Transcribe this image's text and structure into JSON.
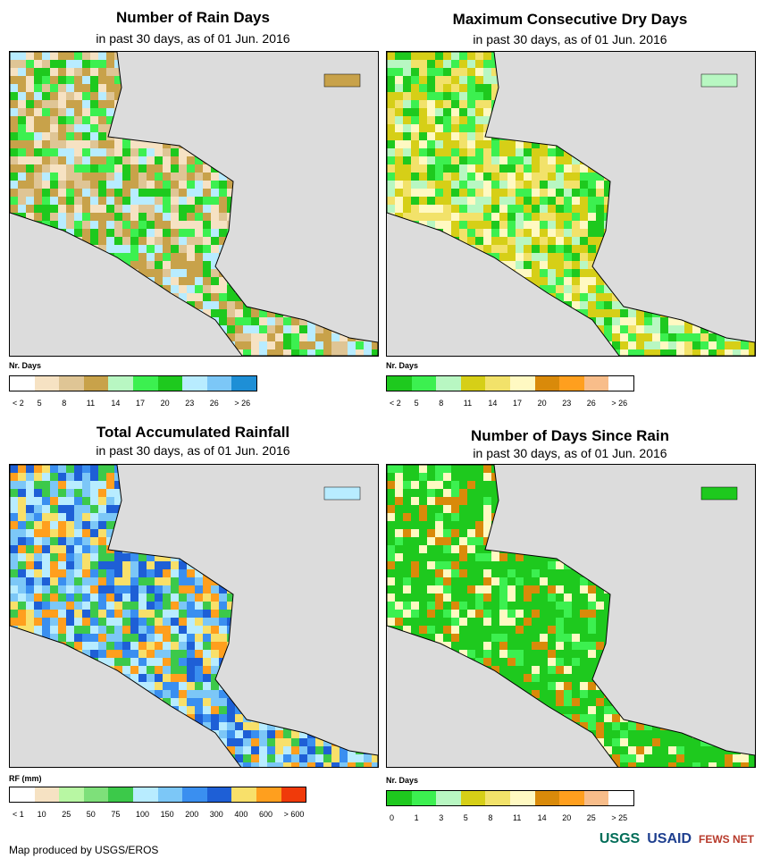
{
  "panels": [
    {
      "title": "Number of Rain Days",
      "subtitle": "in past 30 days, as of 01 Jun. 2016",
      "legend_title": "Nr. Days",
      "legend_colors": [
        "#ffffff",
        "#f6e2c3",
        "#dfc595",
        "#c8a24a",
        "#b8f7c2",
        "#3cf050",
        "#1ec91e",
        "#b8ecff",
        "#7cc7f7",
        "#1e8fd6"
      ],
      "legend_labels": [
        "< 2",
        "5",
        "8",
        "11",
        "14",
        "17",
        "20",
        "23",
        "26",
        "> 26"
      ]
    },
    {
      "title": "Maximum Consecutive Dry Days",
      "subtitle": "in past 30 days, as of 01 Jun. 2016",
      "legend_title": "Nr. Days",
      "legend_colors": [
        "#1ec91e",
        "#3cf050",
        "#b8f7c2",
        "#d6cf17",
        "#f2e26a",
        "#fff9c2",
        "#d98a0a",
        "#ff9f1e",
        "#f8bd8a",
        "#ffffff"
      ],
      "legend_labels": [
        "< 2",
        "5",
        "8",
        "11",
        "14",
        "17",
        "20",
        "23",
        "26",
        "> 26"
      ]
    },
    {
      "title": "Total Accumulated Rainfall",
      "subtitle": "in past 30 days, as of 01 Jun. 2016",
      "legend_title": "RF (mm)",
      "legend_colors": [
        "#ffffff",
        "#f6e2c3",
        "#b8f7a3",
        "#7ee07a",
        "#3cc94a",
        "#b8ecff",
        "#7cc7f7",
        "#3a8ff0",
        "#1e5fd6",
        "#f8e06a",
        "#ff9f1e",
        "#f03a0a"
      ],
      "legend_labels": [
        "< 1",
        "10",
        "25",
        "50",
        "75",
        "100",
        "150",
        "200",
        "300",
        "400",
        "600",
        "> 600"
      ]
    },
    {
      "title": "Number of Days Since Rain",
      "subtitle": "in past 30 days, as of 01 Jun. 2016",
      "legend_title": "Nr. Days",
      "legend_colors": [
        "#1ec91e",
        "#3cf050",
        "#b8f7c2",
        "#d6cf17",
        "#f2e26a",
        "#fff9c2",
        "#d98a0a",
        "#ff9f1e",
        "#f8bd8a",
        "#ffffff"
      ],
      "legend_labels": [
        "0",
        "1",
        "3",
        "5",
        "8",
        "11",
        "14",
        "20",
        "25",
        "> 25"
      ]
    }
  ],
  "footer": "Map produced by USGS/EROS",
  "logos": [
    "USGS",
    "USAID",
    "FEWS NET"
  ]
}
